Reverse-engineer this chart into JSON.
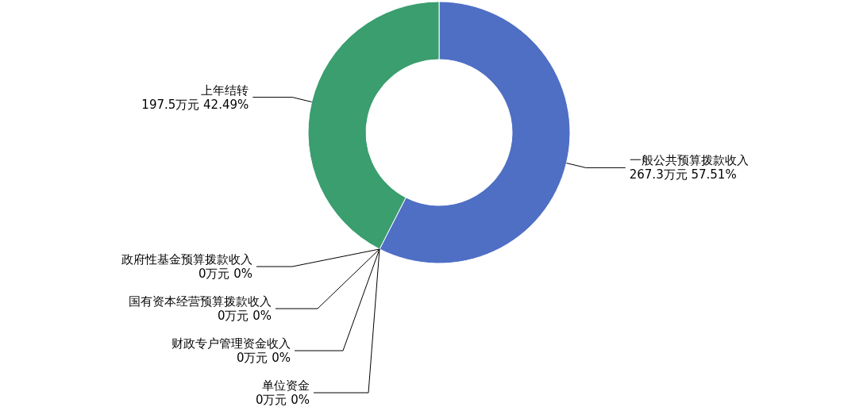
{
  "chart_data": {
    "type": "donut",
    "categories": [
      "一般公共预算拨款收入",
      "政府性基金预算拨款收入",
      "国有资本经营预算拨款收入",
      "财政专户管理资金收入",
      "单位资金",
      "上年结转"
    ],
    "values": [
      267.3,
      0,
      0,
      0,
      0,
      197.5
    ],
    "colors": [
      "#4f6fc5",
      null,
      null,
      null,
      null,
      "#3a9e6e"
    ],
    "value_labels": [
      "267.3万元 57.51%",
      "0万元 0%",
      "0万元 0%",
      "0万元 0%",
      "0万元 0%",
      "197.5万元 42.49%"
    ]
  }
}
